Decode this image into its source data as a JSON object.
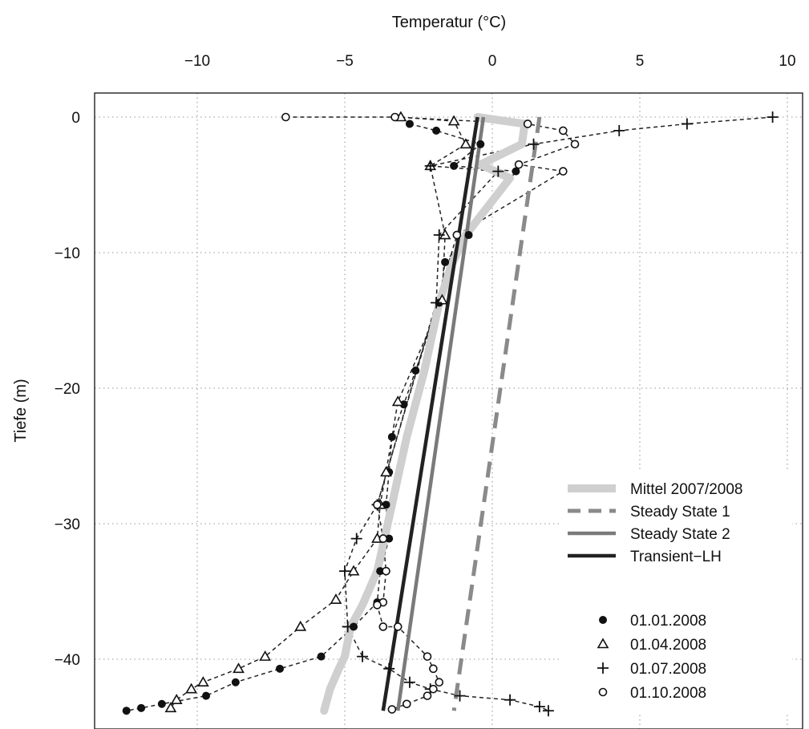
{
  "chart_data": {
    "type": "line",
    "title": "",
    "xlabel": "Temperatur (°C)",
    "ylabel": "Tiefe (m)",
    "xlim": [
      -12.6,
      10.2
    ],
    "ylim": [
      -44,
      2
    ],
    "x_ticks": [
      -10,
      -5,
      0,
      5,
      10
    ],
    "x_tick_labels": [
      "−10",
      "−5",
      "0",
      "5",
      "10"
    ],
    "y_ticks": [
      0,
      -10,
      -20,
      -30,
      -40
    ],
    "y_tick_labels": [
      "0",
      "−10",
      "−20",
      "−30",
      "−40"
    ],
    "grid": true,
    "legend_position": "bottom-right",
    "colors": {
      "mittel": "#cfcfcf",
      "steady1": "#8a8a8a",
      "steady2": "#7a7a7a",
      "transient": "#222222",
      "points": "#111111"
    },
    "series": [
      {
        "name": "Mittel 2007/2008",
        "style": "light-thick",
        "x": [
          -0.5,
          1.1,
          1.0,
          -0.4,
          0.6,
          -0.9,
          -1.4,
          -1.8,
          -2.3,
          -2.9,
          -3.4,
          -3.9,
          -4.4,
          -4.8,
          -5.0,
          -5.2,
          -5.5,
          -5.7
        ],
        "y": [
          0,
          -0.5,
          -2.0,
          -3.5,
          -4.5,
          -8.7,
          -11,
          -13.7,
          -18.7,
          -23.6,
          -28.6,
          -33.5,
          -36.0,
          -37.6,
          -39.8,
          -40.7,
          -42.2,
          -43.8
        ]
      },
      {
        "name": "Steady State 1",
        "style": "dashed",
        "x": [
          1.6,
          -1.3
        ],
        "y": [
          0,
          -43.8
        ]
      },
      {
        "name": "Steady State 2",
        "style": "solid-mid",
        "x": [
          -0.3,
          -3.2
        ],
        "y": [
          0,
          -43.8
        ]
      },
      {
        "name": "Transient−LH",
        "style": "solid-dark",
        "x": [
          -0.5,
          -3.7
        ],
        "y": [
          0,
          -43.8
        ]
      }
    ],
    "measurements": [
      {
        "name": "01.01.2008",
        "marker": "filled-circle",
        "x": [
          -2.8,
          -1.9,
          -0.4,
          -1.3,
          0.8,
          -0.8,
          -1.6,
          -1.8,
          -2.6,
          -3.0,
          -3.4,
          -3.5,
          -3.6,
          -3.5,
          -3.8,
          -3.9,
          -4.7,
          -5.8,
          -7.2,
          -8.7,
          -9.7,
          -11.2,
          -11.9,
          -12.4
        ],
        "y": [
          -0.5,
          -1.0,
          -2.0,
          -3.6,
          -4.0,
          -8.7,
          -10.7,
          -13.7,
          -18.7,
          -21.2,
          -23.6,
          -26.2,
          -28.6,
          -31.1,
          -33.5,
          -35.8,
          -37.6,
          -39.8,
          -40.7,
          -41.7,
          -42.7,
          -43.3,
          -43.6,
          -43.8
        ]
      },
      {
        "name": "01.04.2008",
        "marker": "open-triangle",
        "x": [
          -3.1,
          -1.3,
          -0.9,
          -2.1,
          -1.6,
          -1.7,
          -3.2,
          -3.6,
          -3.8,
          -3.9,
          -4.7,
          -5.3,
          -6.5,
          -7.7,
          -8.6,
          -9.8,
          -10.2,
          -10.7,
          -10.9
        ],
        "y": [
          0,
          -0.3,
          -2.0,
          -3.6,
          -8.7,
          -13.5,
          -21.0,
          -26.2,
          -28.6,
          -31.1,
          -33.5,
          -35.6,
          -37.6,
          -39.8,
          -40.7,
          -41.7,
          -42.2,
          -43.0,
          -43.6
        ]
      },
      {
        "name": "01.07.2008",
        "marker": "plus",
        "x": [
          9.5,
          6.6,
          4.3,
          1.4,
          -2.1,
          0.2,
          -1.8,
          -1.9,
          -3.9,
          -4.6,
          -5.0,
          -4.9,
          -4.4,
          -3.5,
          -2.8,
          -2.1,
          -1.1,
          0.6,
          1.6,
          1.9
        ],
        "y": [
          0,
          -0.5,
          -1.0,
          -2.0,
          -3.6,
          -4.0,
          -8.7,
          -13.7,
          -28.6,
          -31.1,
          -33.5,
          -37.6,
          -39.8,
          -40.7,
          -41.7,
          -42.2,
          -42.7,
          -43.0,
          -43.5,
          -43.8
        ]
      },
      {
        "name": "01.10.2008",
        "marker": "open-circle",
        "x": [
          -7.0,
          -3.3,
          1.2,
          2.4,
          2.8,
          0.9,
          2.4,
          -1.2,
          -3.9,
          -3.7,
          -3.6,
          -3.7,
          -3.9,
          -3.7,
          -3.2,
          -2.2,
          -2.0,
          -1.8,
          -2.0,
          -2.2,
          -2.9,
          -3.4
        ],
        "y": [
          0,
          0,
          -0.5,
          -1.0,
          -2.0,
          -3.5,
          -4.0,
          -8.7,
          -28.6,
          -31.1,
          -33.5,
          -35.8,
          -36.0,
          -37.6,
          -37.6,
          -39.8,
          -40.7,
          -41.7,
          -42.2,
          -42.7,
          -43.3,
          -43.7
        ]
      }
    ]
  }
}
